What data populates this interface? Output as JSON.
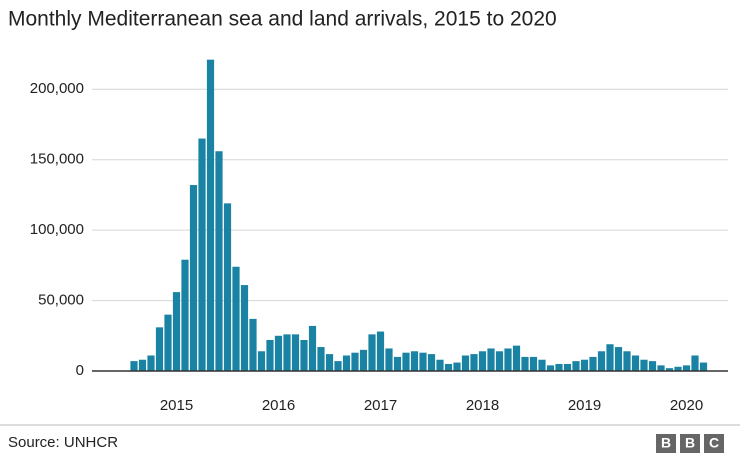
{
  "chart_data": {
    "type": "bar",
    "title": "Monthly Mediterranean sea and land arrivals, 2015 to 2020",
    "source": "Source: UNHCR",
    "logo": [
      "B",
      "B",
      "C"
    ],
    "categories": [
      null,
      null,
      null,
      null,
      null,
      "2015",
      null,
      null,
      null,
      null,
      null,
      null,
      null,
      null,
      null,
      null,
      null,
      "2016",
      null,
      null,
      null,
      null,
      null,
      null,
      null,
      null,
      null,
      null,
      null,
      "2017",
      null,
      null,
      null,
      null,
      null,
      null,
      null,
      null,
      null,
      null,
      null,
      "2018",
      null,
      null,
      null,
      null,
      null,
      null,
      null,
      null,
      null,
      null,
      null,
      "2019",
      null,
      null,
      null,
      null,
      null,
      null,
      null,
      null,
      null,
      null,
      null,
      "2020",
      null,
      null
    ],
    "values": [
      7000,
      8000,
      11000,
      31000,
      40000,
      56000,
      79000,
      132000,
      165000,
      221000,
      156000,
      119000,
      74000,
      61000,
      37000,
      14000,
      22000,
      25000,
      26000,
      26000,
      22000,
      32000,
      17000,
      12000,
      7000,
      11000,
      13000,
      15000,
      26000,
      28000,
      16000,
      10000,
      13000,
      14000,
      13000,
      12000,
      8000,
      5000,
      6000,
      11000,
      12000,
      14000,
      16000,
      14000,
      16000,
      18000,
      10000,
      10000,
      8000,
      4000,
      5000,
      5000,
      7000,
      8000,
      10000,
      14000,
      19000,
      17000,
      14000,
      11000,
      8000,
      7000,
      4000,
      2000,
      3000,
      4000,
      11000,
      6000
    ],
    "color": "#1a82a3",
    "ylim": [
      0,
      230000
    ],
    "yticks": [
      0,
      {
        "value": 50000,
        "label": "50,000"
      },
      {
        "value": 100000,
        "label": "100,000"
      },
      {
        "value": 150000,
        "label": "150,000"
      },
      {
        "value": 200000,
        "label": "200,000"
      }
    ],
    "grid": true
  }
}
